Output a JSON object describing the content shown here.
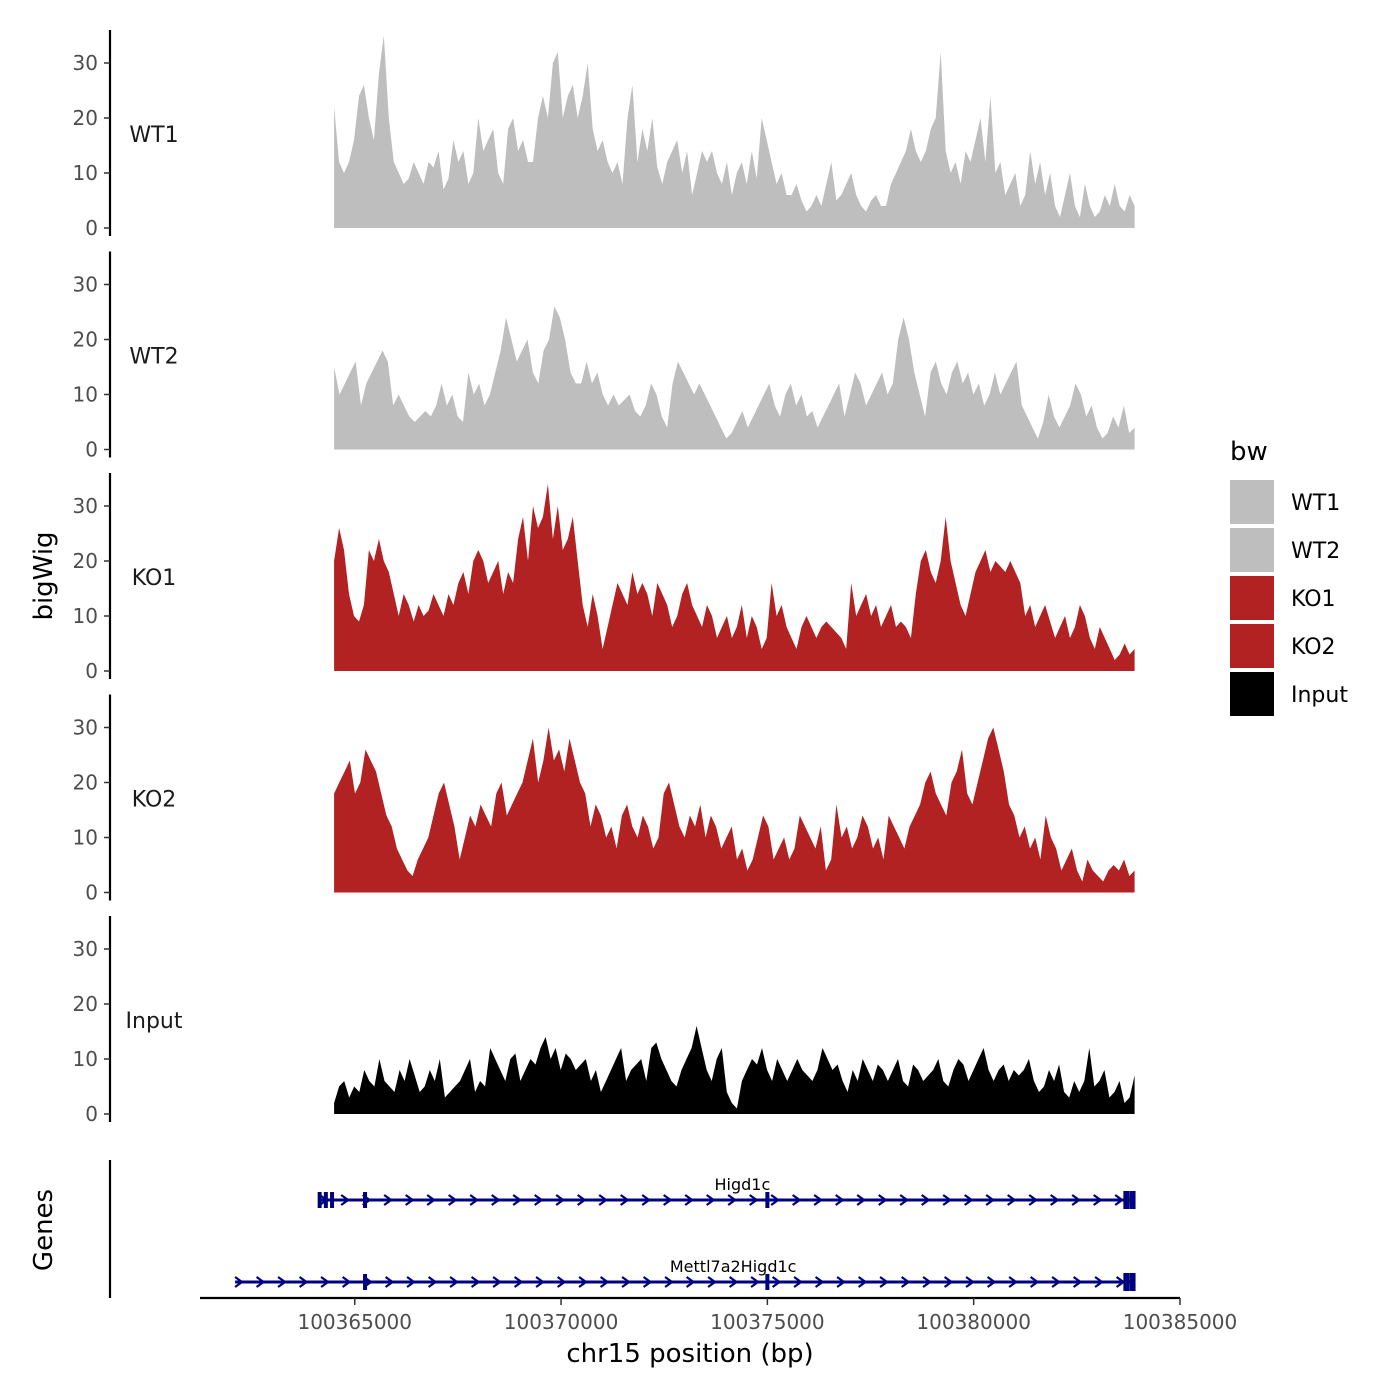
{
  "chart_data": {
    "type": "area",
    "ylabel": "bigWig",
    "genes_label": "Genes",
    "xlabel": "chr15 position (bp)",
    "xlim": [
      100361250,
      100385000
    ],
    "ylim": [
      0,
      36
    ],
    "y_ticks": [
      0,
      10,
      20,
      30
    ],
    "x_ticks": [
      100365000,
      100370000,
      100375000,
      100380000,
      100385000
    ],
    "x_tick_labels": [
      "100365000",
      "100370000",
      "100375000",
      "100380000",
      "100385000"
    ],
    "legend": {
      "title": "bw",
      "entries": [
        {
          "label": "WT1",
          "color": "#BEBEBE"
        },
        {
          "label": "WT2",
          "color": "#BEBEBE"
        },
        {
          "label": "KO1",
          "color": "#B22222"
        },
        {
          "label": "KO2",
          "color": "#B22222"
        },
        {
          "label": "Input",
          "color": "#000000"
        }
      ]
    },
    "series": [
      {
        "name": "WT1",
        "color": "#BEBEBE",
        "x_start": 100364500,
        "x_end": 100383900,
        "values": [
          22,
          12,
          10,
          12,
          16,
          24,
          26,
          20,
          16,
          28,
          35,
          20,
          12,
          10,
          8,
          9,
          12,
          10,
          8,
          12,
          11,
          14,
          7,
          9,
          16,
          12,
          14,
          8,
          10,
          20,
          14,
          16,
          18,
          10,
          8,
          18,
          20,
          14,
          16,
          12,
          12,
          20,
          24,
          20,
          30,
          32,
          20,
          24,
          26,
          20,
          24,
          30,
          18,
          14,
          16,
          12,
          10,
          12,
          8,
          20,
          26,
          12,
          18,
          14,
          20,
          11,
          8,
          12,
          14,
          16,
          10,
          14,
          6,
          10,
          14,
          12,
          14,
          10,
          8,
          12,
          6,
          10,
          12,
          8,
          14,
          9,
          20,
          16,
          12,
          8,
          10,
          6,
          6,
          8,
          5,
          3,
          4,
          6,
          4,
          8,
          12,
          5,
          6,
          8,
          10,
          6,
          4,
          3,
          5,
          6,
          4,
          4,
          8,
          10,
          12,
          14,
          18,
          14,
          12,
          14,
          18,
          20,
          32,
          14,
          10,
          12,
          8,
          14,
          12,
          16,
          20,
          12,
          24,
          10,
          12,
          6,
          8,
          10,
          4,
          6,
          14,
          8,
          12,
          6,
          10,
          4,
          2,
          6,
          10,
          4,
          2,
          8,
          4,
          2,
          3,
          6,
          4,
          8,
          4,
          3,
          6,
          4
        ]
      },
      {
        "name": "WT2",
        "color": "#BEBEBE",
        "x_start": 100364500,
        "x_end": 100383900,
        "values": [
          15,
          10,
          12,
          14,
          16,
          8,
          12,
          14,
          16,
          18,
          16,
          8,
          10,
          8,
          6,
          5,
          6,
          7,
          6,
          8,
          12,
          8,
          10,
          6,
          5,
          14,
          10,
          12,
          8,
          10,
          14,
          18,
          24,
          20,
          16,
          18,
          20,
          14,
          12,
          18,
          20,
          26,
          24,
          20,
          14,
          12,
          12,
          16,
          12,
          14,
          10,
          8,
          10,
          8,
          9,
          10,
          7,
          6,
          8,
          12,
          10,
          6,
          4,
          12,
          16,
          14,
          12,
          10,
          12,
          10,
          8,
          6,
          4,
          2,
          3,
          5,
          7,
          4,
          6,
          8,
          10,
          12,
          8,
          6,
          10,
          12,
          8,
          10,
          6,
          7,
          4,
          6,
          8,
          10,
          12,
          6,
          10,
          14,
          12,
          8,
          10,
          12,
          14,
          10,
          12,
          20,
          24,
          20,
          14,
          10,
          6,
          14,
          16,
          12,
          10,
          14,
          16,
          12,
          14,
          10,
          12,
          8,
          10,
          14,
          10,
          12,
          14,
          16,
          8,
          6,
          4,
          2,
          5,
          10,
          6,
          4,
          6,
          8,
          12,
          10,
          6,
          8,
          4,
          2,
          3,
          6,
          4,
          8,
          3,
          4
        ]
      },
      {
        "name": "KO1",
        "color": "#B22222",
        "x_start": 100364500,
        "x_end": 100383900,
        "values": [
          20,
          26,
          22,
          14,
          10,
          9,
          12,
          22,
          20,
          24,
          20,
          18,
          14,
          10,
          14,
          12,
          9,
          12,
          10,
          11,
          14,
          12,
          10,
          14,
          12,
          16,
          18,
          14,
          20,
          22,
          20,
          16,
          18,
          20,
          14,
          18,
          16,
          24,
          28,
          20,
          30,
          26,
          28,
          34,
          24,
          30,
          22,
          24,
          28,
          20,
          12,
          8,
          14,
          10,
          4,
          8,
          12,
          16,
          14,
          12,
          18,
          14,
          16,
          14,
          10,
          16,
          14,
          12,
          8,
          10,
          14,
          16,
          12,
          10,
          8,
          12,
          10,
          6,
          8,
          10,
          6,
          8,
          12,
          6,
          10,
          8,
          4,
          6,
          16,
          10,
          12,
          8,
          6,
          4,
          8,
          10,
          8,
          6,
          8,
          9,
          8,
          7,
          6,
          4,
          16,
          10,
          12,
          14,
          10,
          12,
          8,
          10,
          12,
          8,
          9,
          8,
          6,
          14,
          20,
          22,
          18,
          16,
          20,
          28,
          20,
          16,
          12,
          10,
          14,
          18,
          20,
          22,
          18,
          20,
          19,
          18,
          20,
          18,
          16,
          10,
          12,
          8,
          10,
          12,
          9,
          6,
          8,
          10,
          6,
          8,
          12,
          10,
          6,
          4,
          8,
          6,
          4,
          2,
          3,
          5,
          3,
          4
        ]
      },
      {
        "name": "KO2",
        "color": "#B22222",
        "x_start": 100364500,
        "x_end": 100383900,
        "values": [
          18,
          20,
          22,
          24,
          18,
          20,
          26,
          24,
          22,
          18,
          14,
          12,
          8,
          6,
          4,
          3,
          6,
          8,
          10,
          14,
          18,
          20,
          16,
          12,
          6,
          10,
          14,
          12,
          16,
          14,
          12,
          18,
          20,
          14,
          16,
          18,
          20,
          24,
          28,
          20,
          24,
          30,
          24,
          26,
          22,
          28,
          24,
          20,
          18,
          12,
          16,
          14,
          10,
          12,
          8,
          14,
          16,
          12,
          10,
          14,
          12,
          8,
          10,
          18,
          20,
          16,
          12,
          10,
          14,
          12,
          16,
          10,
          14,
          12,
          8,
          10,
          12,
          6,
          8,
          4,
          6,
          10,
          14,
          12,
          6,
          8,
          10,
          6,
          8,
          14,
          12,
          10,
          8,
          12,
          4,
          6,
          16,
          10,
          12,
          8,
          10,
          14,
          12,
          8,
          10,
          6,
          14,
          12,
          10,
          8,
          12,
          14,
          16,
          20,
          22,
          18,
          16,
          14,
          20,
          22,
          26,
          18,
          16,
          20,
          24,
          28,
          30,
          26,
          22,
          16,
          14,
          10,
          12,
          8,
          10,
          6,
          14,
          10,
          8,
          4,
          6,
          8,
          4,
          2,
          6,
          4,
          3,
          2,
          4,
          5,
          4,
          6,
          3,
          4
        ]
      },
      {
        "name": "Input",
        "color": "#000000",
        "x_start": 100364500,
        "x_end": 100383900,
        "values": [
          2,
          5,
          6,
          3,
          5,
          4,
          8,
          6,
          5,
          10,
          6,
          5,
          4,
          8,
          6,
          10,
          7,
          4,
          5,
          8,
          6,
          10,
          3,
          4,
          5,
          6,
          8,
          10,
          4,
          6,
          5,
          12,
          10,
          8,
          6,
          10,
          11,
          6,
          8,
          10,
          9,
          12,
          14,
          10,
          12,
          8,
          11,
          10,
          8,
          9,
          10,
          6,
          8,
          4,
          6,
          8,
          10,
          12,
          6,
          8,
          9,
          10,
          6,
          12,
          13,
          10,
          8,
          6,
          5,
          8,
          10,
          12,
          16,
          12,
          8,
          6,
          10,
          12,
          4,
          2,
          1,
          6,
          8,
          10,
          9,
          12,
          8,
          6,
          10,
          8,
          6,
          8,
          10,
          8,
          7,
          6,
          8,
          12,
          10,
          8,
          9,
          6,
          4,
          8,
          6,
          10,
          8,
          6,
          9,
          8,
          6,
          8,
          10,
          6,
          5,
          9,
          8,
          6,
          7,
          8,
          10,
          6,
          5,
          8,
          10,
          9,
          6,
          8,
          10,
          12,
          8,
          6,
          8,
          9,
          6,
          8,
          7,
          8,
          10,
          6,
          4,
          5,
          8,
          6,
          9,
          4,
          3,
          6,
          4,
          6,
          12,
          5,
          6,
          8,
          3,
          4,
          6,
          2,
          3,
          7
        ]
      }
    ],
    "gene_tracks": [
      {
        "name": "Higd1c",
        "label": "Higd1c",
        "start": 100364150,
        "end": 100383850,
        "exons": [
          100364150,
          100364300,
          100364450,
          100365250,
          100375000,
          100383700,
          100383850
        ]
      },
      {
        "name": "Mettl7a2Higd1c",
        "label": "Mettl7a2Higd1c",
        "start": 100362100,
        "end": 100383850,
        "exons": [
          100365250,
          100375000,
          100383700,
          100383850
        ]
      }
    ]
  }
}
